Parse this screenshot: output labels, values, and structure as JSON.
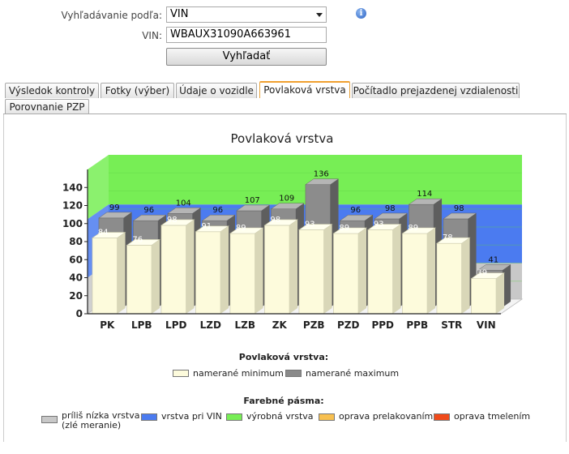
{
  "search": {
    "by_label": "Vyhľadávanie podľa:",
    "by_value": "VIN",
    "vin_label": "VIN:",
    "vin_value": "WBAUX31090A663961",
    "button": "Vyhľadať"
  },
  "tabs": [
    {
      "label": "Výsledok kontroly"
    },
    {
      "label": "Fotky (výber)"
    },
    {
      "label": "Údaje o vozidle"
    },
    {
      "label": "Povlaková vrstva",
      "active": true
    },
    {
      "label": "Počítadlo prejazdenej vzdialenosti"
    },
    {
      "label": "Porovnanie PZP"
    }
  ],
  "chart_data": {
    "type": "bar",
    "title": "Povlaková vrstva",
    "categories": [
      "PK",
      "LPB",
      "LPD",
      "LZD",
      "LZB",
      "ZK",
      "PZB",
      "PZD",
      "PPD",
      "PPB",
      "STR",
      "VIN"
    ],
    "series": [
      {
        "name": "namerané minimum",
        "values": [
          84,
          76,
          98,
          91,
          89,
          98,
          93,
          89,
          93,
          89,
          78,
          39
        ],
        "color": "#fdfbdc"
      },
      {
        "name": "namerané maximum",
        "values": [
          99,
          96,
          104,
          96,
          107,
          109,
          136,
          96,
          98,
          114,
          98,
          41
        ],
        "color": "#8a8a8a"
      }
    ],
    "yticks": [
      0,
      20,
      40,
      60,
      80,
      100,
      120,
      140
    ],
    "ylim": [
      0,
      160
    ],
    "bands": [
      {
        "name": "príliš nízka vrstva (zlé meranie)",
        "from": 0,
        "to": 40,
        "color": "#c8c8c8"
      },
      {
        "name": "vrstva pri VIN",
        "from": 40,
        "to": 105,
        "color": "#4b7bf0"
      },
      {
        "name": "výrobná vrstva",
        "from": 105,
        "to": 160,
        "color": "#77ee55"
      },
      {
        "name": "oprava prelakovaním",
        "color": "#f8c050"
      },
      {
        "name": "oprava tmelením",
        "color": "#f04a1a"
      }
    ]
  },
  "legend": {
    "series_title": "Povlaková vrstva:",
    "bands_title": "Farebné pásma:",
    "min_label": "namerané minimum",
    "max_label": "namerané maximum",
    "band_low_line1": "príliš nízka vrstva",
    "band_low_line2": "(zlé meranie)",
    "band_vin": "vrstva pri VIN",
    "band_factory": "výrobná vrstva",
    "band_repaint": "oprava prelakovaním",
    "band_filler": "oprava tmelením"
  }
}
